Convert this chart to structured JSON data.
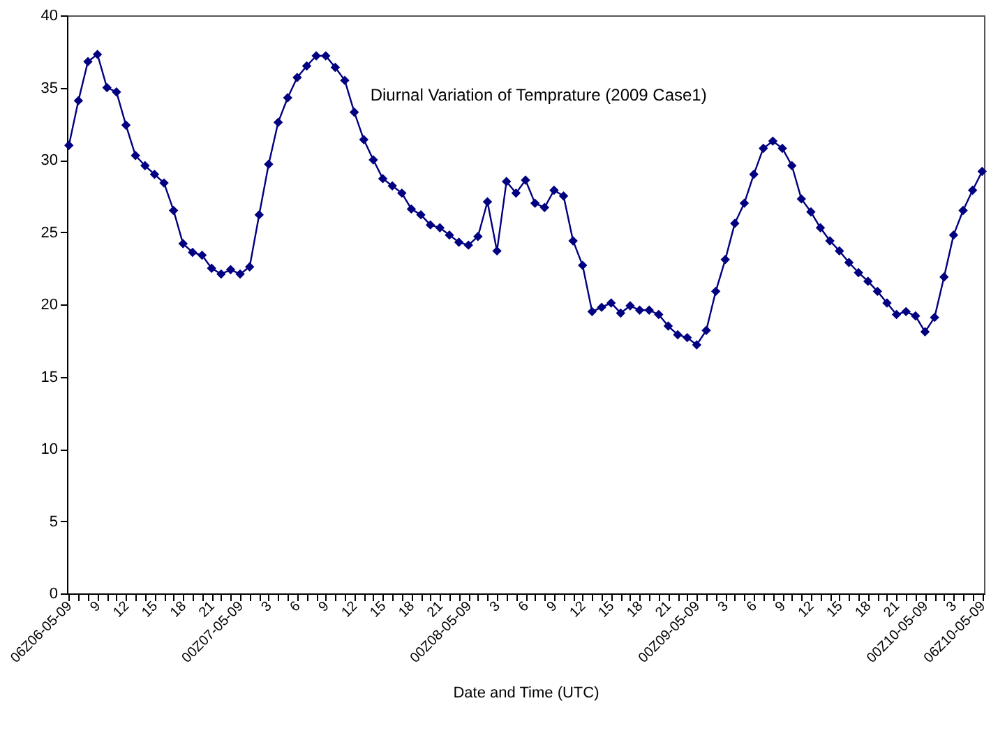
{
  "chart_data": {
    "type": "line",
    "title": "Diurnal Variation of Temprature (2009 Case1)",
    "xlabel": "Date and Time (UTC)",
    "categories": [
      "06Z06-05-09",
      null,
      null,
      "9",
      null,
      null,
      "12",
      null,
      null,
      "15",
      null,
      null,
      "18",
      null,
      null,
      "21",
      null,
      null,
      "00Z07-05-09",
      null,
      null,
      "3",
      null,
      null,
      "6",
      null,
      null,
      "9",
      null,
      null,
      "12",
      null,
      null,
      "15",
      null,
      null,
      "18",
      null,
      null,
      "21",
      null,
      null,
      "00Z08-05-09",
      null,
      null,
      "3",
      null,
      null,
      "6",
      null,
      null,
      "9",
      null,
      null,
      "12",
      null,
      null,
      "15",
      null,
      null,
      "18",
      null,
      null,
      "21",
      null,
      null,
      "00Z09-05-09",
      null,
      null,
      "3",
      null,
      null,
      "6",
      null,
      null,
      "9",
      null,
      null,
      "12",
      null,
      null,
      "15",
      null,
      null,
      "18",
      null,
      null,
      "21",
      null,
      null,
      "00Z10-05-09",
      null,
      null,
      "3",
      null,
      null,
      "06Z10-05-09"
    ],
    "series": [
      {
        "color": "#000080",
        "values": [
          31.0,
          34.1,
          36.8,
          37.3,
          35.0,
          34.7,
          32.4,
          30.3,
          29.6,
          29.0,
          28.4,
          26.5,
          24.2,
          23.6,
          23.4,
          22.5,
          22.1,
          22.4,
          22.1,
          22.6,
          26.2,
          29.7,
          32.6,
          34.3,
          35.7,
          36.5,
          37.2,
          37.2,
          36.4,
          35.5,
          33.3,
          31.4,
          30.0,
          28.7,
          28.2,
          27.7,
          26.6,
          26.2,
          25.5,
          25.3,
          24.8,
          24.3,
          24.1,
          24.7,
          27.1,
          23.7,
          28.5,
          27.7,
          28.6,
          27.0,
          26.7,
          27.9,
          27.5,
          24.4,
          22.7,
          19.5,
          19.8,
          20.1,
          19.4,
          19.9,
          19.6,
          19.6,
          19.3,
          18.5,
          17.9,
          17.7,
          17.2,
          18.2,
          20.9,
          23.1,
          25.6,
          27.0,
          29.0,
          30.8,
          31.3,
          30.8,
          29.6,
          27.3,
          26.4,
          25.3,
          24.4,
          23.7,
          22.9,
          22.2,
          21.6,
          20.9,
          20.1,
          19.3,
          19.5,
          19.2,
          18.1,
          19.1,
          21.9,
          24.8,
          26.5,
          27.9,
          29.2
        ]
      }
    ],
    "ylim": [
      0,
      40
    ],
    "yticks": [
      0,
      5,
      10,
      15,
      20,
      25,
      30,
      35,
      40
    ],
    "grid": false,
    "marker": "diamond",
    "line_style": "solid"
  }
}
